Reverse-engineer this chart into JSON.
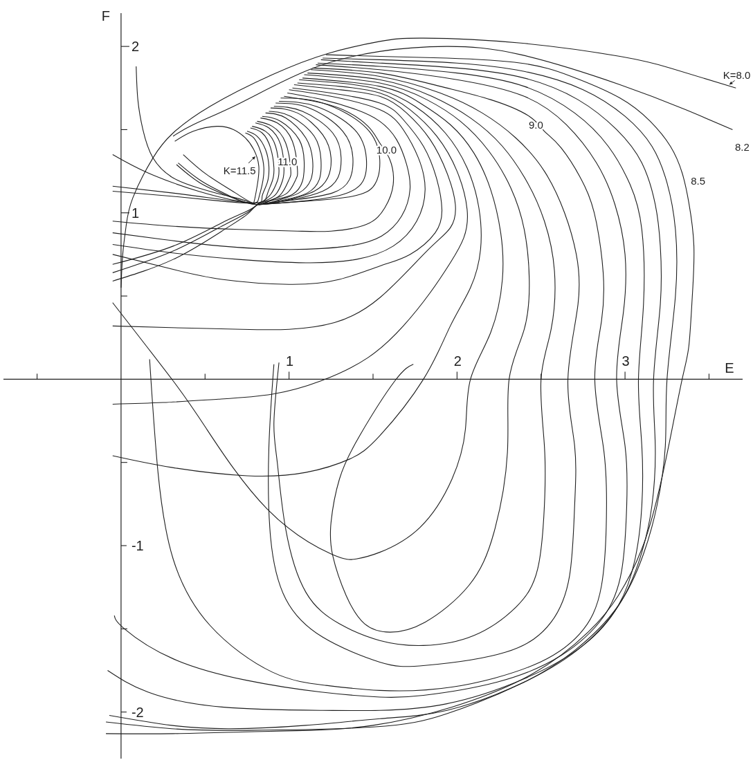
{
  "chart_data": {
    "type": "line",
    "xlabel": "E",
    "ylabel": "F",
    "color": "#1e1e1e",
    "xlim": [
      -0.7,
      3.7
    ],
    "ylim": [
      -2.28,
      2.2
    ],
    "xticks": [
      {
        "value": -0.5,
        "label": null
      },
      {
        "value": 0.5,
        "label": null
      },
      1,
      {
        "value": 1.5,
        "label": null
      },
      2,
      {
        "value": 2.5,
        "label": null
      },
      3,
      {
        "value": 3.5,
        "label": null
      }
    ],
    "yticks": [
      -2,
      {
        "value": -1.5,
        "label": null
      },
      -1,
      {
        "value": -0.5,
        "label": null
      },
      {
        "value": 0.5,
        "label": null
      },
      1,
      {
        "value": 1.5,
        "label": null
      },
      2
    ],
    "annotations": [
      {
        "text": "K=8.0",
        "x": 3.62,
        "y": 1.77
      },
      {
        "text": "8.2",
        "x": 3.64,
        "y": 1.5
      },
      {
        "text": "8.5",
        "x": 3.34,
        "y": 1.24
      },
      {
        "text": "9.0",
        "x": 2.47,
        "y": 1.53
      },
      {
        "text": "10.0",
        "x": 1.58,
        "y": 1.38
      },
      {
        "text": "11.0",
        "x": 0.99,
        "y": 1.31
      },
      {
        "text": "K=11.5",
        "x": 0.8,
        "y": 1.34
      }
    ],
    "series": [
      {
        "x": [
          0.32,
          0.43,
          0.57,
          0.67,
          0.74,
          0.79,
          0.82,
          0.81,
          0.79,
          0.75,
          0.6,
          0.46,
          0.31,
          0.19,
          0.13,
          0.1,
          0.09
        ],
        "values": [
          1.43,
          1.49,
          1.52,
          1.5,
          1.45,
          1.38,
          1.28,
          1.16,
          1.06,
          1.07,
          1.11,
          1.15,
          1.21,
          1.33,
          1.5,
          1.68,
          1.88
        ]
      },
      {
        "x": [
          0.74,
          0.79,
          0.83,
          0.85,
          0.84,
          0.82,
          0.8,
          0.7,
          0.46,
          0.16,
          -0.05
        ],
        "values": [
          1.48,
          1.45,
          1.37,
          1.27,
          1.17,
          1.09,
          1.06,
          1.07,
          1.13,
          1.24,
          1.35
        ]
      },
      {
        "x": [
          0.75,
          0.81,
          0.86,
          0.88,
          0.87,
          0.84,
          0.81,
          0.6,
          0.3,
          -0.05
        ],
        "values": [
          1.49,
          1.46,
          1.38,
          1.28,
          1.18,
          1.1,
          1.06,
          1.08,
          1.12,
          1.16
        ]
      },
      {
        "x": [
          0.77,
          0.84,
          0.89,
          0.91,
          0.9,
          0.87,
          0.82,
          0.6,
          0.3,
          -0.05
        ],
        "values": [
          1.51,
          1.48,
          1.39,
          1.27,
          1.19,
          1.11,
          1.06,
          1.07,
          1.1,
          1.13
        ]
      },
      {
        "x": [
          0.78,
          0.86,
          0.92,
          0.94,
          0.93,
          0.89,
          0.83,
          0.75,
          0.6,
          0.31,
          -0.05
        ],
        "values": [
          1.52,
          1.49,
          1.4,
          1.26,
          1.19,
          1.11,
          1.06,
          1.01,
          0.94,
          0.8,
          0.69
        ]
      },
      {
        "x": [
          0.8,
          0.88,
          0.95,
          0.97,
          0.96,
          0.92,
          0.85,
          0.81,
          0.75,
          0.6,
          0.31,
          -0.05
        ],
        "values": [
          1.54,
          1.51,
          1.41,
          1.26,
          1.19,
          1.11,
          1.07,
          1.05,
          1.0,
          0.92,
          0.77,
          0.64
        ]
      },
      {
        "x": [
          0.81,
          0.9,
          0.98,
          1.01,
          1.0,
          0.95,
          0.87,
          0.81,
          0.75,
          0.6,
          0.31,
          -0.05
        ],
        "values": [
          1.55,
          1.52,
          1.42,
          1.26,
          1.2,
          1.11,
          1.07,
          1.05,
          0.99,
          0.89,
          0.72,
          0.59
        ]
      },
      {
        "x": [
          0.83,
          0.93,
          1.02,
          1.05,
          1.04,
          0.99,
          0.9,
          0.81,
          0.68,
          0.51,
          0.37
        ],
        "values": [
          1.57,
          1.54,
          1.43,
          1.26,
          1.2,
          1.12,
          1.08,
          1.05,
          1.12,
          1.23,
          1.35
        ]
      },
      {
        "x": [
          0.84,
          0.95,
          1.06,
          1.09,
          1.08,
          1.02,
          0.92,
          0.82
        ],
        "values": [
          1.58,
          1.55,
          1.44,
          1.31,
          1.19,
          1.11,
          1.08,
          1.05
        ]
      },
      {
        "x": [
          0.86,
          0.98,
          1.1,
          1.14,
          1.13,
          1.06,
          0.95,
          0.81,
          0.64,
          0.47,
          0.33
        ],
        "values": [
          1.6,
          1.57,
          1.45,
          1.32,
          1.2,
          1.12,
          1.08,
          1.05,
          1.1,
          1.18,
          1.29
        ]
      },
      {
        "x": [
          0.88,
          1.01,
          1.15,
          1.19,
          1.18,
          1.11,
          0.98,
          0.82
        ],
        "values": [
          1.61,
          1.58,
          1.46,
          1.32,
          1.2,
          1.12,
          1.08,
          1.05
        ]
      },
      {
        "x": [
          0.89,
          1.05,
          1.2,
          1.25,
          1.23,
          1.15,
          1.0,
          0.81,
          0.65,
          0.48,
          0.34
        ],
        "values": [
          1.63,
          1.6,
          1.47,
          1.33,
          1.21,
          1.13,
          1.08,
          1.05,
          1.1,
          1.19,
          1.3
        ]
      },
      {
        "x": [
          0.91,
          1.08,
          1.26,
          1.31,
          1.29,
          1.2,
          1.02,
          0.82
        ],
        "values": [
          1.64,
          1.61,
          1.48,
          1.33,
          1.21,
          1.13,
          1.08,
          1.05
        ]
      },
      {
        "x": [
          0.92,
          1.12,
          1.32,
          1.38,
          1.36,
          1.26,
          1.05,
          0.82
        ],
        "values": [
          1.66,
          1.63,
          1.49,
          1.33,
          1.2,
          1.12,
          1.08,
          1.05
        ]
      },
      {
        "x": [
          0.94,
          1.16,
          1.39,
          1.46,
          1.44,
          1.32,
          1.08,
          0.82
        ],
        "values": [
          1.67,
          1.64,
          1.5,
          1.33,
          1.19,
          1.11,
          1.07,
          1.05
        ]
      },
      {
        "x": [
          0.95,
          1.2,
          1.46,
          1.54,
          1.51,
          1.38,
          1.1,
          0.82
        ],
        "values": [
          1.69,
          1.66,
          1.51,
          1.32,
          1.17,
          1.1,
          1.07,
          1.05
        ]
      },
      {
        "x": [
          0.97,
          1.15,
          1.32,
          1.47,
          1.54,
          1.6,
          1.62,
          1.57,
          1.46,
          1.25,
          1.05,
          0.7,
          0.3,
          -0.05
        ],
        "values": [
          1.7,
          1.67,
          1.62,
          1.52,
          1.42,
          1.32,
          1.17,
          1.03,
          0.93,
          0.89,
          0.89,
          0.9,
          0.92,
          0.95
        ]
      },
      {
        "x": [
          0.99,
          1.2,
          1.4,
          1.54,
          1.64,
          1.7,
          1.72,
          1.67,
          1.55,
          1.35,
          1.0,
          0.6,
          0.25,
          -0.05
        ],
        "values": [
          1.72,
          1.68,
          1.62,
          1.55,
          1.44,
          1.29,
          1.14,
          0.98,
          0.86,
          0.8,
          0.78,
          0.8,
          0.84,
          0.88
        ]
      },
      {
        "x": [
          1.0,
          1.25,
          1.54,
          1.68,
          1.77,
          1.81,
          1.76,
          1.62,
          1.4,
          1.1,
          0.7,
          0.3,
          -0.05
        ],
        "values": [
          1.74,
          1.7,
          1.62,
          1.5,
          1.33,
          1.14,
          0.95,
          0.8,
          0.72,
          0.7,
          0.72,
          0.76,
          0.81
        ]
      },
      {
        "x": [
          1.02,
          1.25,
          1.54,
          1.68,
          1.8,
          1.88,
          1.91,
          1.87,
          1.72,
          1.54,
          1.3,
          1.0,
          0.6,
          0.31,
          -0.05
        ],
        "values": [
          1.75,
          1.72,
          1.66,
          1.56,
          1.4,
          1.2,
          1.02,
          0.88,
          0.75,
          0.68,
          0.6,
          0.57,
          0.6,
          0.66,
          0.75
        ]
      },
      {
        "x": [
          1.03,
          1.3,
          1.54,
          1.7,
          1.84,
          1.94,
          1.99,
          1.96,
          1.82,
          1.54,
          1.27,
          1.0,
          0.72,
          0.3,
          -0.05
        ],
        "values": [
          1.77,
          1.74,
          1.7,
          1.6,
          1.44,
          1.24,
          1.05,
          0.91,
          0.77,
          0.49,
          0.34,
          0.3,
          0.3,
          0.31,
          0.32
        ]
      },
      {
        "x": [
          1.05,
          1.3,
          1.54,
          1.72,
          1.88,
          2.0,
          2.06,
          2.04,
          1.96,
          1.84,
          1.68,
          1.47,
          1.19,
          0.9,
          0.58,
          0.25,
          -0.05
        ],
        "values": [
          1.78,
          1.76,
          1.72,
          1.62,
          1.46,
          1.25,
          1.02,
          0.85,
          0.7,
          0.52,
          0.32,
          0.13,
          -0.01,
          -0.09,
          -0.12,
          -0.14,
          -0.15
        ]
      },
      {
        "x": [
          1.06,
          1.3,
          1.54,
          1.75,
          1.93,
          2.06,
          2.13,
          2.14,
          2.08,
          1.96,
          1.8,
          1.54,
          1.36,
          1.1,
          0.75,
          0.3,
          -0.05
        ],
        "values": [
          1.8,
          1.78,
          1.74,
          1.64,
          1.48,
          1.27,
          1.03,
          0.78,
          0.55,
          0.32,
          0.0,
          -0.34,
          -0.48,
          -0.56,
          -0.58,
          -0.53,
          -0.46
        ]
      },
      {
        "x": [
          1.08,
          1.54,
          1.78,
          1.96,
          2.1,
          2.2,
          2.26,
          2.27,
          2.2,
          2.08,
          2.05,
          1.97,
          1.78,
          1.54,
          1.4,
          1.25,
          0.87,
          0.51,
          0.31,
          -0.05
        ],
        "values": [
          1.81,
          1.76,
          1.66,
          1.53,
          1.36,
          1.14,
          0.88,
          0.6,
          0.28,
          0.0,
          -0.3,
          -0.6,
          -0.89,
          -1.04,
          -1.08,
          -1.05,
          -0.78,
          -0.3,
          -0.01,
          0.46
        ]
      },
      {
        "x": [
          1.09,
          1.54,
          1.82,
          2.02,
          2.19,
          2.32,
          2.4,
          2.43,
          2.4,
          2.31,
          2.3,
          2.22,
          2.07,
          1.81,
          1.6,
          1.45,
          1.34,
          1.26,
          1.25,
          1.3,
          1.42,
          1.63,
          1.74
        ],
        "values": [
          1.83,
          1.78,
          1.68,
          1.55,
          1.37,
          1.15,
          0.9,
          0.6,
          0.3,
          0.0,
          -0.44,
          -0.92,
          -1.24,
          -1.46,
          -1.52,
          -1.47,
          -1.3,
          -1.06,
          -0.86,
          -0.6,
          -0.34,
          -0.01,
          0.09
        ]
      },
      {
        "x": [
          1.11,
          1.54,
          1.85,
          2.08,
          2.27,
          2.42,
          2.52,
          2.58,
          2.56,
          2.5,
          2.52,
          2.52,
          2.48,
          2.35,
          2.1,
          1.8,
          1.54,
          1.3,
          1.1,
          0.98,
          0.93,
          0.91,
          0.94
        ],
        "values": [
          1.84,
          1.8,
          1.7,
          1.57,
          1.4,
          1.18,
          0.95,
          0.65,
          0.3,
          0.0,
          -0.4,
          -0.76,
          -1.14,
          -1.37,
          -1.54,
          -1.6,
          -1.57,
          -1.47,
          -1.28,
          -0.9,
          -0.5,
          -0.26,
          0.1
        ]
      },
      {
        "x": [
          1.13,
          1.54,
          1.9,
          2.15,
          2.35,
          2.52,
          2.64,
          2.71,
          2.72,
          2.66,
          2.7,
          2.7,
          2.67,
          2.56,
          2.29,
          1.81,
          1.54,
          1.2,
          0.98,
          0.89,
          0.88,
          0.91
        ],
        "values": [
          1.86,
          1.82,
          1.72,
          1.6,
          1.45,
          1.25,
          1.0,
          0.75,
          0.45,
          0.0,
          -0.4,
          -0.76,
          -1.18,
          -1.46,
          -1.64,
          -1.72,
          -1.7,
          -1.55,
          -1.32,
          -0.95,
          -0.41,
          0.09
        ]
      },
      {
        "x": [
          1.14,
          1.54,
          1.9,
          2.2,
          2.43,
          2.52,
          2.62,
          2.76,
          2.83,
          2.87,
          2.86,
          2.82,
          2.87,
          2.89,
          2.86,
          2.73,
          2.45,
          1.97,
          1.54,
          1.22,
          0.9,
          0.53,
          0.31,
          0.22,
          0.17
        ],
        "values": [
          1.87,
          1.84,
          1.76,
          1.68,
          1.58,
          1.49,
          1.39,
          1.16,
          0.94,
          0.64,
          0.35,
          0.0,
          -0.4,
          -0.76,
          -1.24,
          -1.53,
          -1.72,
          -1.85,
          -1.87,
          -1.84,
          -1.76,
          -1.48,
          -1.08,
          -0.56,
          0.12
        ]
      },
      {
        "x": [
          1.16,
          1.54,
          2.0,
          2.4,
          2.65,
          2.83,
          2.94,
          3.0,
          2.99,
          2.95,
          3.0,
          3.01,
          2.98,
          2.87,
          2.62,
          2.24,
          1.8,
          1.54,
          1.19,
          0.75,
          0.31,
          0.02,
          -0.04
        ],
        "values": [
          1.89,
          1.86,
          1.8,
          1.7,
          1.53,
          1.3,
          1.05,
          0.75,
          0.4,
          0.0,
          -0.4,
          -0.76,
          -1.15,
          -1.43,
          -1.66,
          -1.82,
          -1.9,
          -1.91,
          -1.88,
          -1.81,
          -1.68,
          -1.5,
          -1.42
        ]
      },
      {
        "x": [
          1.17,
          1.54,
          2.0,
          2.4,
          2.7,
          2.9,
          3.03,
          3.1,
          3.11,
          3.08,
          3.1,
          3.1,
          3.06,
          2.96,
          2.75,
          2.4,
          1.94,
          1.54,
          1.2,
          0.6,
          0.16,
          -0.08
        ],
        "values": [
          1.9,
          1.88,
          1.84,
          1.76,
          1.6,
          1.4,
          1.17,
          0.9,
          0.45,
          0.0,
          -0.4,
          -0.76,
          -1.08,
          -1.36,
          -1.6,
          -1.8,
          -1.95,
          -1.99,
          -1.99,
          -1.97,
          -1.88,
          -1.75
        ]
      },
      {
        "x": [
          1.19,
          1.54,
          2.0,
          2.4,
          2.72,
          2.95,
          3.1,
          3.18,
          3.21,
          3.21,
          3.17,
          3.18,
          3.16,
          3.1,
          2.98,
          2.75,
          2.4,
          1.94,
          1.54,
          1.1,
          0.65,
          0.3,
          -0.07
        ],
        "values": [
          1.92,
          1.9,
          1.87,
          1.81,
          1.68,
          1.5,
          1.3,
          1.05,
          0.8,
          0.45,
          0.0,
          -0.4,
          -0.76,
          -1.04,
          -1.33,
          -1.6,
          -1.82,
          -1.99,
          -2.04,
          -2.08,
          -2.1,
          -2.08,
          -2.02
        ]
      },
      {
        "x": [
          1.2,
          1.54,
          2.0,
          2.4,
          2.75,
          3.0,
          3.16,
          3.25,
          3.3,
          3.3,
          3.25,
          3.24,
          3.19,
          3.11,
          2.96,
          2.7,
          2.38,
          1.94,
          1.5,
          0.75,
          0.3,
          -0.09
        ],
        "values": [
          1.93,
          1.92,
          1.9,
          1.85,
          1.74,
          1.58,
          1.4,
          1.18,
          0.9,
          0.5,
          0.0,
          -0.4,
          -0.76,
          -1.05,
          -1.36,
          -1.63,
          -1.83,
          -2.01,
          -2.09,
          -2.11,
          -2.1,
          -2.06
        ]
      },
      {
        "x": [
          1.22,
          1.54,
          1.94,
          2.38,
          2.68,
          2.97,
          3.15,
          3.27,
          3.34,
          3.38,
          3.41,
          3.4,
          3.38,
          3.34,
          3.26,
          3.19,
          3.1,
          2.96,
          2.78,
          2.45,
          1.97,
          1.5,
          1.13,
          0.72,
          0.31,
          -0.09
        ],
        "values": [
          1.95,
          1.94,
          1.93,
          1.9,
          1.82,
          1.69,
          1.55,
          1.4,
          1.24,
          1.06,
          0.8,
          0.49,
          0.2,
          0.0,
          -0.4,
          -0.72,
          -1.02,
          -1.3,
          -1.52,
          -1.77,
          -1.97,
          -2.08,
          -2.11,
          -2.12,
          -2.13,
          -2.13
        ]
      },
      {
        "x": [
          0.31,
          0.43,
          0.71,
          1.12,
          1.54,
          1.94,
          2.38,
          2.97,
          3.36,
          3.64
        ],
        "values": [
          1.46,
          1.53,
          1.66,
          1.86,
          1.97,
          2.0,
          1.95,
          1.77,
          1.62,
          1.5
        ]
      },
      {
        "x": [
          0.0,
          0.01,
          0.03,
          0.07,
          0.19,
          0.31,
          0.53,
          0.9,
          1.24,
          1.54,
          1.8,
          2.38,
          2.97,
          3.27,
          3.66
        ],
        "values": [
          0.55,
          0.75,
          0.92,
          1.09,
          1.33,
          1.48,
          1.64,
          1.83,
          1.96,
          2.03,
          2.05,
          2.02,
          1.94,
          1.87,
          1.75
        ]
      }
    ]
  }
}
